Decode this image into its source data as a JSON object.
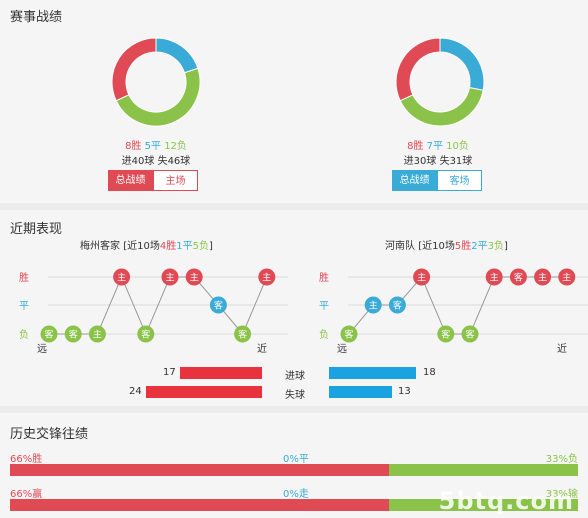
{
  "section1": {
    "title": "赛事战绩",
    "left": {
      "wins": "8胜",
      "draws": "5平",
      "losses": "12负",
      "goals": "进40球 失46球",
      "tab_active": "总战绩",
      "tab_other": "主场",
      "donut": {
        "win": 8,
        "draw": 5,
        "loss": 12
      },
      "colors": {
        "win": "#e04a55",
        "draw": "#3aaad6",
        "loss": "#8bc34a"
      }
    },
    "right": {
      "wins": "8胜",
      "draws": "7平",
      "losses": "10负",
      "goals": "进30球 失31球",
      "tab_active": "总战绩",
      "tab_other": "客场",
      "donut": {
        "win": 8,
        "draw": 7,
        "loss": 10
      },
      "colors": {
        "win": "#e04a55",
        "draw": "#3aaad6",
        "loss": "#8bc34a"
      }
    }
  },
  "section2": {
    "title": "近期表现",
    "left_header": {
      "team": "梅州客家",
      "prefix": "[近10场",
      "w": "4胜",
      "d": "1平",
      "l": "5负",
      "suffix": "]"
    },
    "right_header": {
      "team": "河南队",
      "prefix": "[近10场",
      "w": "5胜",
      "d": "2平",
      "l": "3负",
      "suffix": "]"
    },
    "row_labels": {
      "win": "胜",
      "draw": "平",
      "loss": "负"
    },
    "far": "远",
    "near": "近",
    "left_form": [
      {
        "r": "L",
        "v": "客"
      },
      {
        "r": "L",
        "v": "客"
      },
      {
        "r": "L",
        "v": "主"
      },
      {
        "r": "W",
        "v": "主"
      },
      {
        "r": "L",
        "v": "客"
      },
      {
        "r": "W",
        "v": "主"
      },
      {
        "r": "W",
        "v": "主"
      },
      {
        "r": "D",
        "v": "客"
      },
      {
        "r": "L",
        "v": "客"
      },
      {
        "r": "W",
        "v": "主"
      }
    ],
    "right_form": [
      {
        "r": "L",
        "v": "客"
      },
      {
        "r": "D",
        "v": "主"
      },
      {
        "r": "D",
        "v": "客"
      },
      {
        "r": "W",
        "v": "主"
      },
      {
        "r": "L",
        "v": "客"
      },
      {
        "r": "L",
        "v": "客"
      },
      {
        "r": "W",
        "v": "主"
      },
      {
        "r": "W",
        "v": "客"
      },
      {
        "r": "W",
        "v": "主"
      },
      {
        "r": "W",
        "v": "主"
      }
    ],
    "stats": {
      "goals_label": "进球",
      "conceded_label": "失球",
      "left_goals": 17,
      "left_conceded": 24,
      "right_goals": 18,
      "right_conceded": 13,
      "left_color": "#e8333f",
      "right_color": "#1aa3e0"
    }
  },
  "section3": {
    "title": "历史交锋往绩",
    "row1": {
      "left": "66%胜",
      "mid": "0%平",
      "right": "33%负",
      "win_pct": 66,
      "draw_pct": 0,
      "loss_pct": 33
    },
    "row2": {
      "left": "66%赢",
      "mid": "0%走",
      "right": "33%输",
      "win_pct": 66,
      "draw_pct": 0,
      "loss_pct": 33
    }
  },
  "watermark": "5btq.com"
}
